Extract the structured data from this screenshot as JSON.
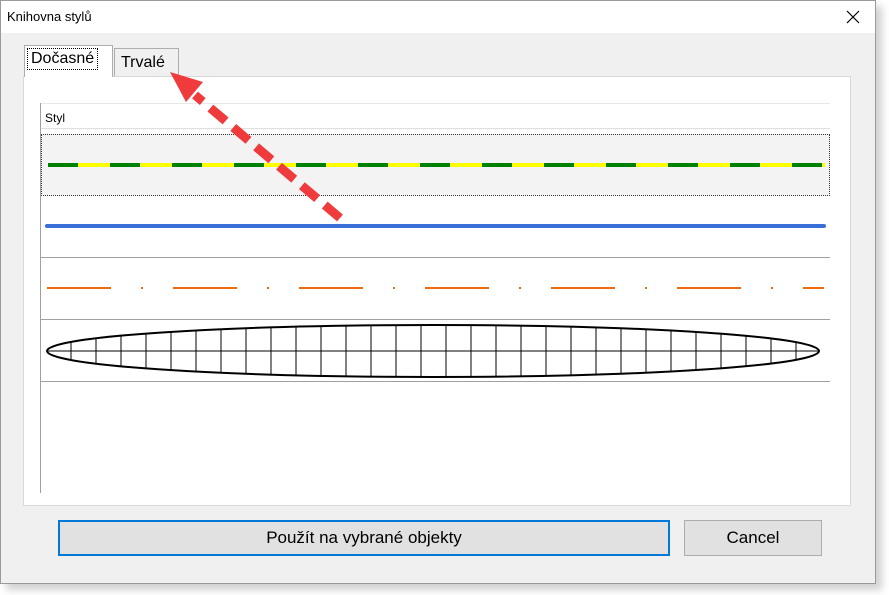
{
  "window": {
    "title": "Knihovna stylů"
  },
  "tabs": [
    {
      "label": "Dočasné",
      "active": true
    },
    {
      "label": "Trvalé",
      "active": false
    }
  ],
  "list": {
    "column_header": "Styl",
    "rows": [
      {
        "kind": "dashed-two-color",
        "colors": [
          "#008000",
          "#ffff00"
        ],
        "selected": true
      },
      {
        "kind": "solid",
        "colors": [
          "#3a6fd8"
        ],
        "selected": false
      },
      {
        "kind": "dash-dot",
        "colors": [
          "#f06a10"
        ],
        "selected": false
      },
      {
        "kind": "lens-grid",
        "colors": [
          "#000000"
        ],
        "selected": false
      }
    ]
  },
  "buttons": {
    "apply": "Použít na vybrané objekty",
    "cancel": "Cancel"
  },
  "annotation": {
    "type": "arrow",
    "color": "#ef3b3b",
    "points_to": "tab-trvale"
  },
  "icons": {
    "close": "close-icon"
  }
}
